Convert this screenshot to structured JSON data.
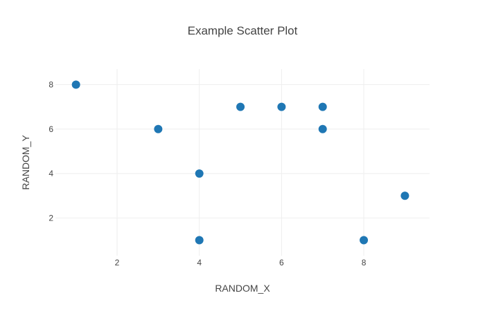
{
  "chart_data": {
    "type": "scatter",
    "title": "Example Scatter Plot",
    "xlabel": "RANDOM_X",
    "ylabel": "RANDOM_Y",
    "xlim": [
      0.5,
      9.6
    ],
    "ylim": [
      0.3,
      8.7
    ],
    "xticks": [
      2,
      4,
      6,
      8
    ],
    "yticks": [
      2,
      4,
      6,
      8
    ],
    "grid": true,
    "legend": false,
    "marker_color": "#1f77b4",
    "points": [
      {
        "x": 1,
        "y": 8
      },
      {
        "x": 3,
        "y": 6
      },
      {
        "x": 4,
        "y": 4
      },
      {
        "x": 4,
        "y": 1
      },
      {
        "x": 5,
        "y": 7
      },
      {
        "x": 6,
        "y": 7
      },
      {
        "x": 7,
        "y": 7
      },
      {
        "x": 7,
        "y": 6
      },
      {
        "x": 8,
        "y": 1
      },
      {
        "x": 9,
        "y": 3
      }
    ]
  }
}
